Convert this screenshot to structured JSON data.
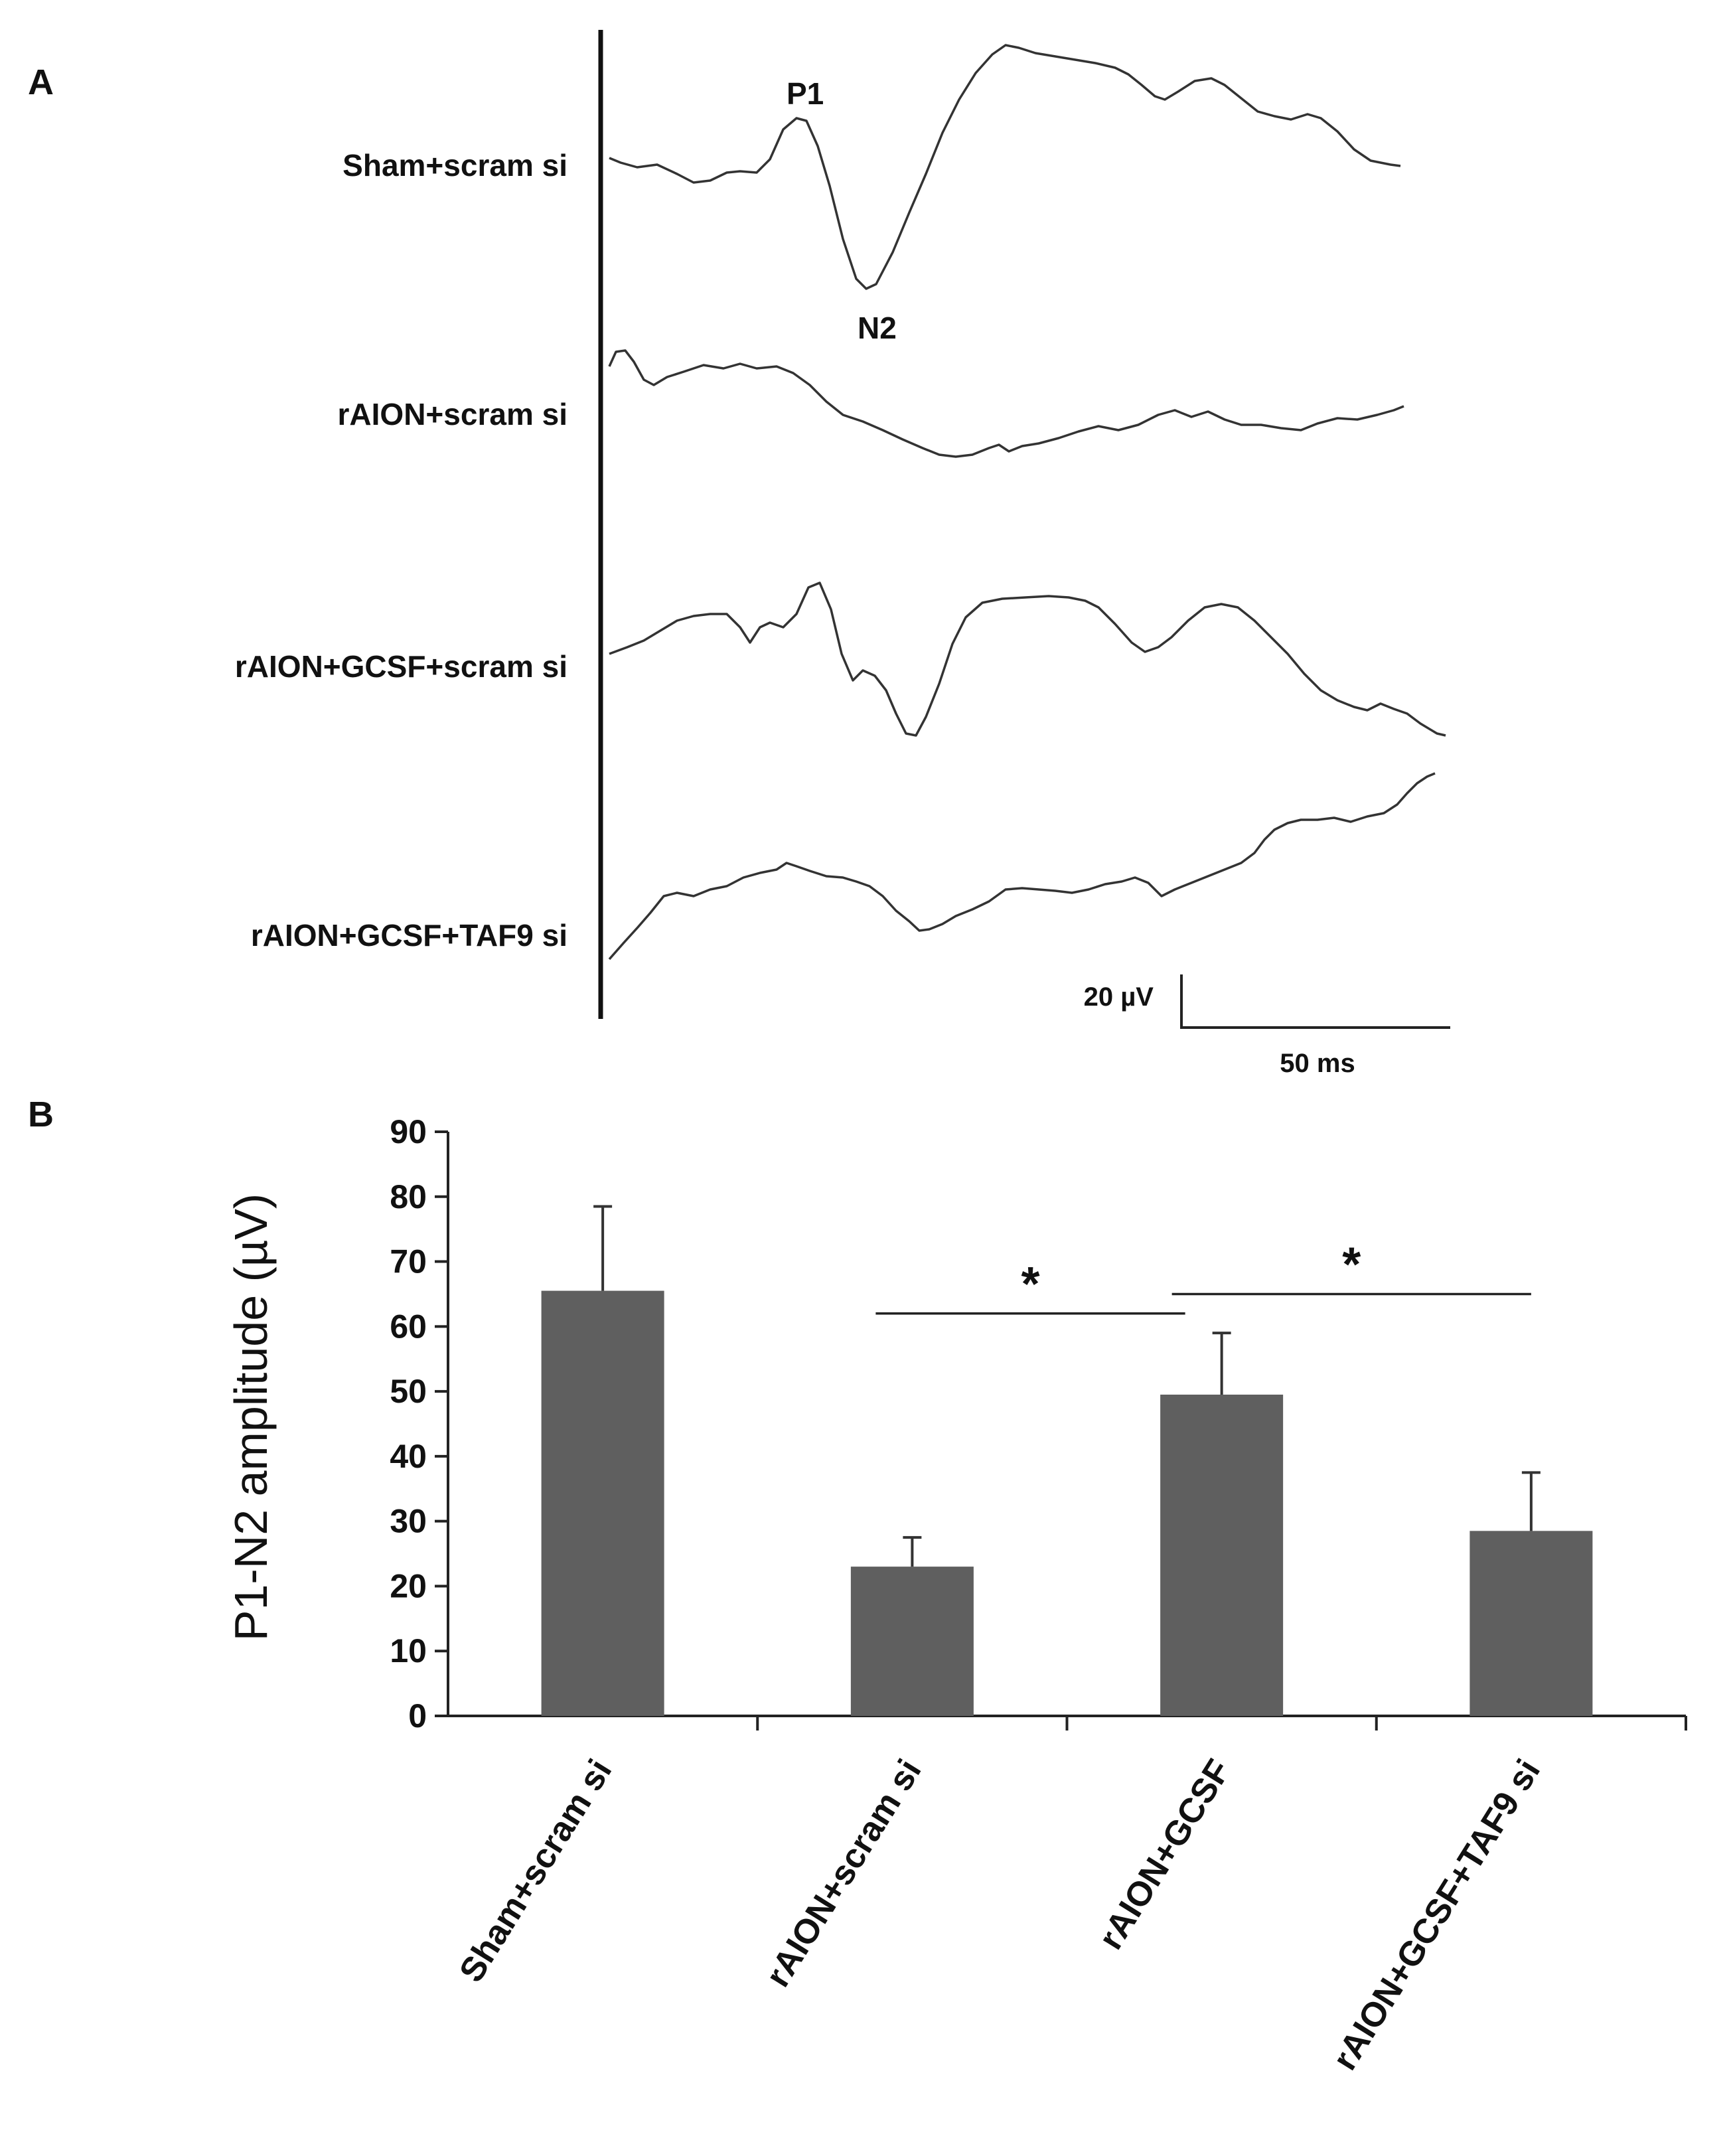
{
  "panel_a": {
    "label": "A",
    "traces": [
      {
        "name": "Sham+scram si",
        "peaks": [
          "P1",
          "N2"
        ]
      },
      {
        "name": "rAION+scram si"
      },
      {
        "name": "rAION+GCSF+scram si"
      },
      {
        "name": "rAION+GCSF+TAF9 si"
      }
    ],
    "scale_bar": {
      "amplitude_label": "20 µV",
      "time_label": "50 ms"
    }
  },
  "panel_b": {
    "label": "B"
  },
  "chart_data": {
    "type": "bar",
    "title": "",
    "xlabel": "",
    "ylabel": "P1-N2 amplitude (µV)",
    "ylim": [
      0,
      90
    ],
    "yticks": [
      0,
      10,
      20,
      30,
      40,
      50,
      60,
      70,
      80,
      90
    ],
    "categories": [
      "Sham+scram si",
      "rAION+scram si",
      "rAION+GCSF",
      "rAION+GCSF+TAF9 si"
    ],
    "values": [
      65.5,
      23,
      49.5,
      28.5
    ],
    "errors": [
      13,
      4.5,
      9.5,
      9
    ],
    "bar_color": "#5f5f5f",
    "significance": [
      {
        "from": 1,
        "to": 2,
        "y": 62,
        "label": "*"
      },
      {
        "from": 2,
        "to": 3,
        "y": 65,
        "label": "*"
      }
    ]
  }
}
